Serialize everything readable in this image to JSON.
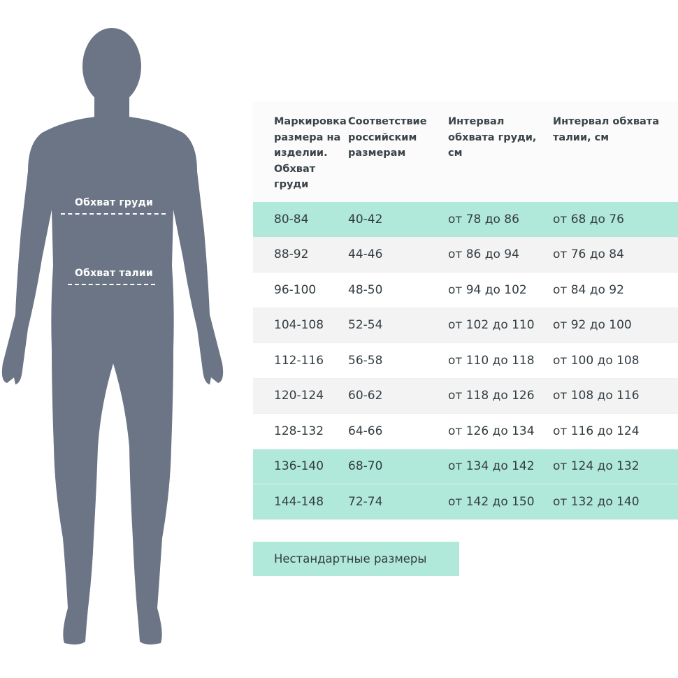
{
  "figure": {
    "color": "#6b7585",
    "chest_label": "Обхват груди",
    "waist_label": "Обхват талии"
  },
  "table": {
    "headers": [
      "Маркировка размера на изделии. Обхват груди",
      "Соответствие российским размерам",
      "Интервал обхвата груди, см",
      "Интервал обхвата талии, см"
    ],
    "rows": [
      [
        "80-84",
        "40-42",
        "от 78 до 86",
        "от 68 до 76"
      ],
      [
        "88-92",
        "44-46",
        "от 86 до 94",
        "от 76 до 84"
      ],
      [
        "96-100",
        "48-50",
        "от 94 до 102",
        "от 84 до 92"
      ],
      [
        "104-108",
        "52-54",
        "от 102 до 110",
        "от 92 до 100"
      ],
      [
        "112-116",
        "56-58",
        "от 110 до 118",
        "от 100 до 108"
      ],
      [
        "120-124",
        "60-62",
        "от 118 до 126",
        "от 108 до 116"
      ],
      [
        "128-132",
        "64-66",
        "от 126 до 134",
        "от 116 до 124"
      ],
      [
        "136-140",
        "68-70",
        "от 134 до 142",
        "от 124 до 132"
      ],
      [
        "144-148",
        "72-74",
        "от 142 до 150",
        "от 132 до 140"
      ]
    ],
    "row_styles": [
      "teal",
      "grey",
      "white",
      "grey",
      "white",
      "grey",
      "white",
      "teal",
      "teal"
    ],
    "highlight_color": "#b0e8d9"
  },
  "note": "Нестандартные размеры"
}
